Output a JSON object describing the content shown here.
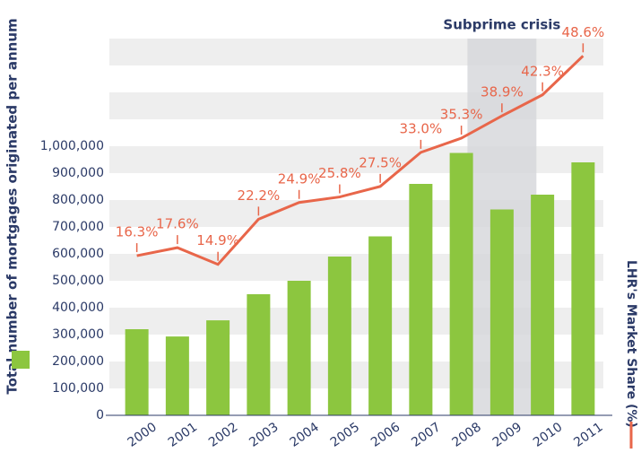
{
  "chart_data": {
    "type": "bar_line",
    "y_axis_label": "Total number of mortgages originated per annum",
    "y2_axis_label": "LHR's Market Share (%)",
    "annotation": {
      "text": "Subprime crisis",
      "category": "2009"
    },
    "categories": [
      "2000",
      "2001",
      "2002",
      "2003",
      "2004",
      "2005",
      "2006",
      "2007",
      "2008",
      "2009",
      "2010",
      "2011"
    ],
    "series": [
      {
        "name": "Total number of mortgages originated per annum",
        "type": "bar",
        "color": "#8cc63f",
        "values": [
          320000,
          293000,
          353000,
          450000,
          500000,
          590000,
          665000,
          860000,
          975000,
          765000,
          820000,
          940000
        ]
      },
      {
        "name": "LHR's Market Share (%)",
        "type": "line",
        "axis": "y2",
        "color": "#e8664a",
        "values": [
          16.3,
          17.6,
          14.9,
          22.2,
          24.9,
          25.8,
          27.5,
          33.0,
          35.3,
          38.9,
          42.3,
          48.6
        ],
        "value_labels": [
          "16.3%",
          "17.6%",
          "14.9%",
          "22.2%",
          "24.9%",
          "25.8%",
          "27.5%",
          "33.0%",
          "35.3%",
          "38.9%",
          "42.3%",
          "48.6%"
        ]
      }
    ],
    "ylim": [
      0,
      1400000
    ],
    "yticks": [
      {
        "value": 0,
        "label": "0"
      },
      {
        "value": 100000,
        "label": "100,000"
      },
      {
        "value": 200000,
        "label": "200,000"
      },
      {
        "value": 300000,
        "label": "300,000"
      },
      {
        "value": 400000,
        "label": "400,000"
      },
      {
        "value": 500000,
        "label": "500,000"
      },
      {
        "value": 600000,
        "label": "600,000"
      },
      {
        "value": 700000,
        "label": "700,000"
      },
      {
        "value": 800000,
        "label": "800,000"
      },
      {
        "value": 900000,
        "label": "900,000"
      },
      {
        "value": 1000000,
        "label": "1,000,000"
      }
    ],
    "y2lim": [
      -9.5,
      51.4
    ]
  }
}
